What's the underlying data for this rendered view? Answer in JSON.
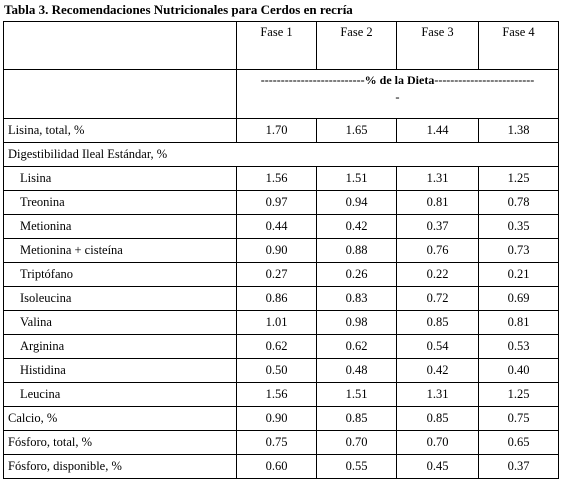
{
  "caption": "Tabla 3.  Recomendaciones Nutricionales para Cerdos en recría",
  "header": {
    "phases": [
      "Fase 1",
      "Fase 2",
      "Fase 3",
      "Fase 4"
    ],
    "unit_label": "--------------------------% de la Dieta-------------------------",
    "unit_dash": "-"
  },
  "rows": [
    {
      "label": "Lisina, total, %",
      "values": [
        "1.70",
        "1.65",
        "1.44",
        "1.38"
      ]
    },
    {
      "label": "Digestibilidad Ileal Estándar, %",
      "values": []
    },
    {
      "label": "Lisina",
      "values": [
        "1.56",
        "1.51",
        "1.31",
        "1.25"
      ]
    },
    {
      "label": "Treonina",
      "values": [
        "0.97",
        "0.94",
        "0.81",
        "0.78"
      ]
    },
    {
      "label": "Metionina",
      "values": [
        "0.44",
        "0.42",
        "0.37",
        "0.35"
      ]
    },
    {
      "label": "Metionina + cisteína",
      "values": [
        "0.90",
        "0.88",
        "0.76",
        "0.73"
      ]
    },
    {
      "label": "Triptófano",
      "values": [
        "0.27",
        "0.26",
        "0.22",
        "0.21"
      ]
    },
    {
      "label": "Isoleucina",
      "values": [
        "0.86",
        "0.83",
        "0.72",
        "0.69"
      ]
    },
    {
      "label": "Valina",
      "values": [
        "1.01",
        "0.98",
        "0.85",
        "0.81"
      ]
    },
    {
      "label": "Arginina",
      "values": [
        "0.62",
        "0.62",
        "0.54",
        "0.53"
      ]
    },
    {
      "label": "Histidina",
      "values": [
        "0.50",
        "0.48",
        "0.42",
        "0.40"
      ]
    },
    {
      "label": "Leucina",
      "values": [
        "1.56",
        "1.51",
        "1.31",
        "1.25"
      ]
    },
    {
      "label": "Calcio, %",
      "values": [
        "0.90",
        "0.85",
        "0.85",
        "0.75"
      ]
    },
    {
      "label": "Fósforo, total, %",
      "values": [
        "0.75",
        "0.70",
        "0.70",
        "0.65"
      ]
    },
    {
      "label": "Fósforo, disponible, %",
      "values": [
        "0.60",
        "0.55",
        "0.45",
        "0.37"
      ]
    }
  ]
}
